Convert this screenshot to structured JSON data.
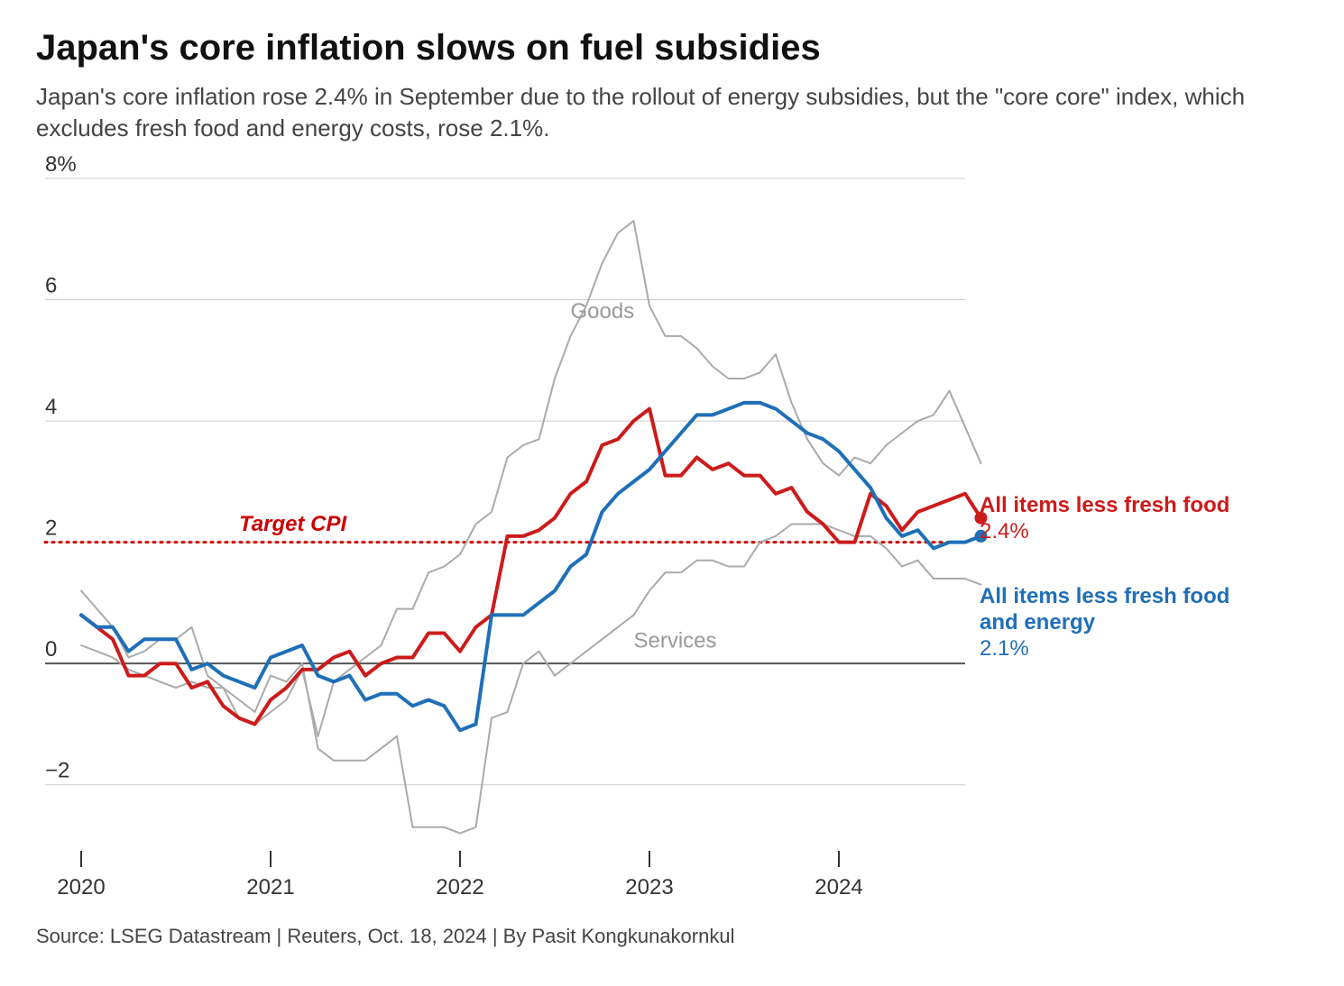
{
  "title": "Japan's core inflation slows on fuel subsidies",
  "subtitle": "Japan's core inflation rose 2.4% in September due to the rollout of energy subsidies, but the \"core core\" index, which excludes fresh food and energy costs, rose 2.1%.",
  "source": "Source: LSEG Datastream | Reuters, Oct. 18, 2024 | By Pasit Kongkunakornkul",
  "chart": {
    "type": "line",
    "background_color": "#ffffff",
    "grid_color": "#cccccc",
    "zero_line_color": "#555555",
    "axis_text_color": "#333333",
    "axis_fontsize": 24,
    "ylim": [
      -3,
      8
    ],
    "yticks": [
      -2,
      0,
      2,
      4,
      6,
      8
    ],
    "ytick_top_suffix": "%",
    "xlim_index": [
      0,
      56
    ],
    "xticks": [
      {
        "idx": 0,
        "label": "2020"
      },
      {
        "idx": 12,
        "label": "2021"
      },
      {
        "idx": 24,
        "label": "2022"
      },
      {
        "idx": 36,
        "label": "2023"
      },
      {
        "idx": 48,
        "label": "2024"
      }
    ],
    "target_line": {
      "value": 2,
      "label": "Target CPI",
      "color": "#cc0000",
      "dash": "2,6",
      "label_x_idx": 10
    },
    "series": [
      {
        "id": "goods",
        "name": "Goods",
        "color": "#aaaaaa",
        "width": 2,
        "inline_label_idx": 31,
        "inline_label_dy": -20,
        "data": [
          1.2,
          0.9,
          0.6,
          0.1,
          0.2,
          0.4,
          0.4,
          0.6,
          -0.2,
          -0.4,
          -0.9,
          -1.0,
          -0.8,
          -0.6,
          -0.1,
          -1.2,
          -0.3,
          -0.1,
          0.1,
          0.3,
          0.9,
          0.9,
          1.5,
          1.6,
          1.8,
          2.3,
          2.5,
          3.4,
          3.6,
          3.7,
          4.7,
          5.4,
          5.9,
          6.6,
          7.1,
          7.3,
          5.9,
          5.4,
          5.4,
          5.2,
          4.9,
          4.7,
          4.7,
          4.8,
          5.1,
          4.3,
          3.7,
          3.3,
          3.1,
          3.4,
          3.3,
          3.6,
          3.8,
          4.0,
          4.1,
          4.5,
          3.9,
          3.3
        ]
      },
      {
        "id": "services",
        "name": "Services",
        "color": "#aaaaaa",
        "width": 2,
        "inline_label_idx": 35,
        "inline_label_dy": 36,
        "data": [
          0.3,
          0.2,
          0.1,
          -0.1,
          -0.2,
          -0.3,
          -0.4,
          -0.3,
          -0.4,
          -0.4,
          -0.6,
          -0.8,
          -0.2,
          -0.3,
          0.0,
          -1.4,
          -1.6,
          -1.6,
          -1.6,
          -1.4,
          -1.2,
          -2.7,
          -2.7,
          -2.7,
          -2.8,
          -2.7,
          -0.9,
          -0.8,
          0.0,
          0.2,
          -0.2,
          0.0,
          0.2,
          0.4,
          0.6,
          0.8,
          1.2,
          1.5,
          1.5,
          1.7,
          1.7,
          1.6,
          1.6,
          2.0,
          2.1,
          2.3,
          2.3,
          2.3,
          2.2,
          2.1,
          2.1,
          1.9,
          1.6,
          1.7,
          1.4,
          1.4,
          1.4,
          1.3
        ]
      },
      {
        "id": "core",
        "name": "All items less fresh food",
        "color": "#cc1b1b",
        "width": 4,
        "end_marker": true,
        "end_value_label": "2.4%",
        "data": [
          0.8,
          0.6,
          0.4,
          -0.2,
          -0.2,
          0.0,
          0.0,
          -0.4,
          -0.3,
          -0.7,
          -0.9,
          -1.0,
          -0.6,
          -0.4,
          -0.1,
          -0.1,
          0.1,
          0.2,
          -0.2,
          0.0,
          0.1,
          0.1,
          0.5,
          0.5,
          0.2,
          0.6,
          0.8,
          2.1,
          2.1,
          2.2,
          2.4,
          2.8,
          3.0,
          3.6,
          3.7,
          4.0,
          4.2,
          3.1,
          3.1,
          3.4,
          3.2,
          3.3,
          3.1,
          3.1,
          2.8,
          2.9,
          2.5,
          2.3,
          2.0,
          2.0,
          2.8,
          2.6,
          2.2,
          2.5,
          2.6,
          2.7,
          2.8,
          2.4
        ]
      },
      {
        "id": "corecore",
        "name": "All items less fresh food and energy",
        "color": "#1f6fb8",
        "width": 4,
        "end_marker": true,
        "end_value_label": "2.1%",
        "data": [
          0.8,
          0.6,
          0.6,
          0.2,
          0.4,
          0.4,
          0.4,
          -0.1,
          0.0,
          -0.2,
          -0.3,
          -0.4,
          0.1,
          0.2,
          0.3,
          -0.2,
          -0.3,
          -0.2,
          -0.6,
          -0.5,
          -0.5,
          -0.7,
          -0.6,
          -0.7,
          -1.1,
          -1.0,
          0.8,
          0.8,
          0.8,
          1.0,
          1.2,
          1.6,
          1.8,
          2.5,
          2.8,
          3.0,
          3.2,
          3.5,
          3.8,
          4.1,
          4.1,
          4.2,
          4.3,
          4.3,
          4.2,
          4.0,
          3.8,
          3.7,
          3.5,
          3.2,
          2.9,
          2.4,
          2.1,
          2.2,
          1.9,
          2.0,
          2.0,
          2.1
        ]
      }
    ],
    "end_labels": [
      {
        "series": "core",
        "lines": [
          "All items less fresh food"
        ],
        "value": "2.4%",
        "y_anchor": 2.6,
        "color": "#cc1b1b"
      },
      {
        "series": "corecore",
        "lines": [
          "All items less fresh food",
          "and energy"
        ],
        "value": "2.1%",
        "y_anchor": 1.1,
        "color": "#1f6fb8"
      }
    ]
  }
}
